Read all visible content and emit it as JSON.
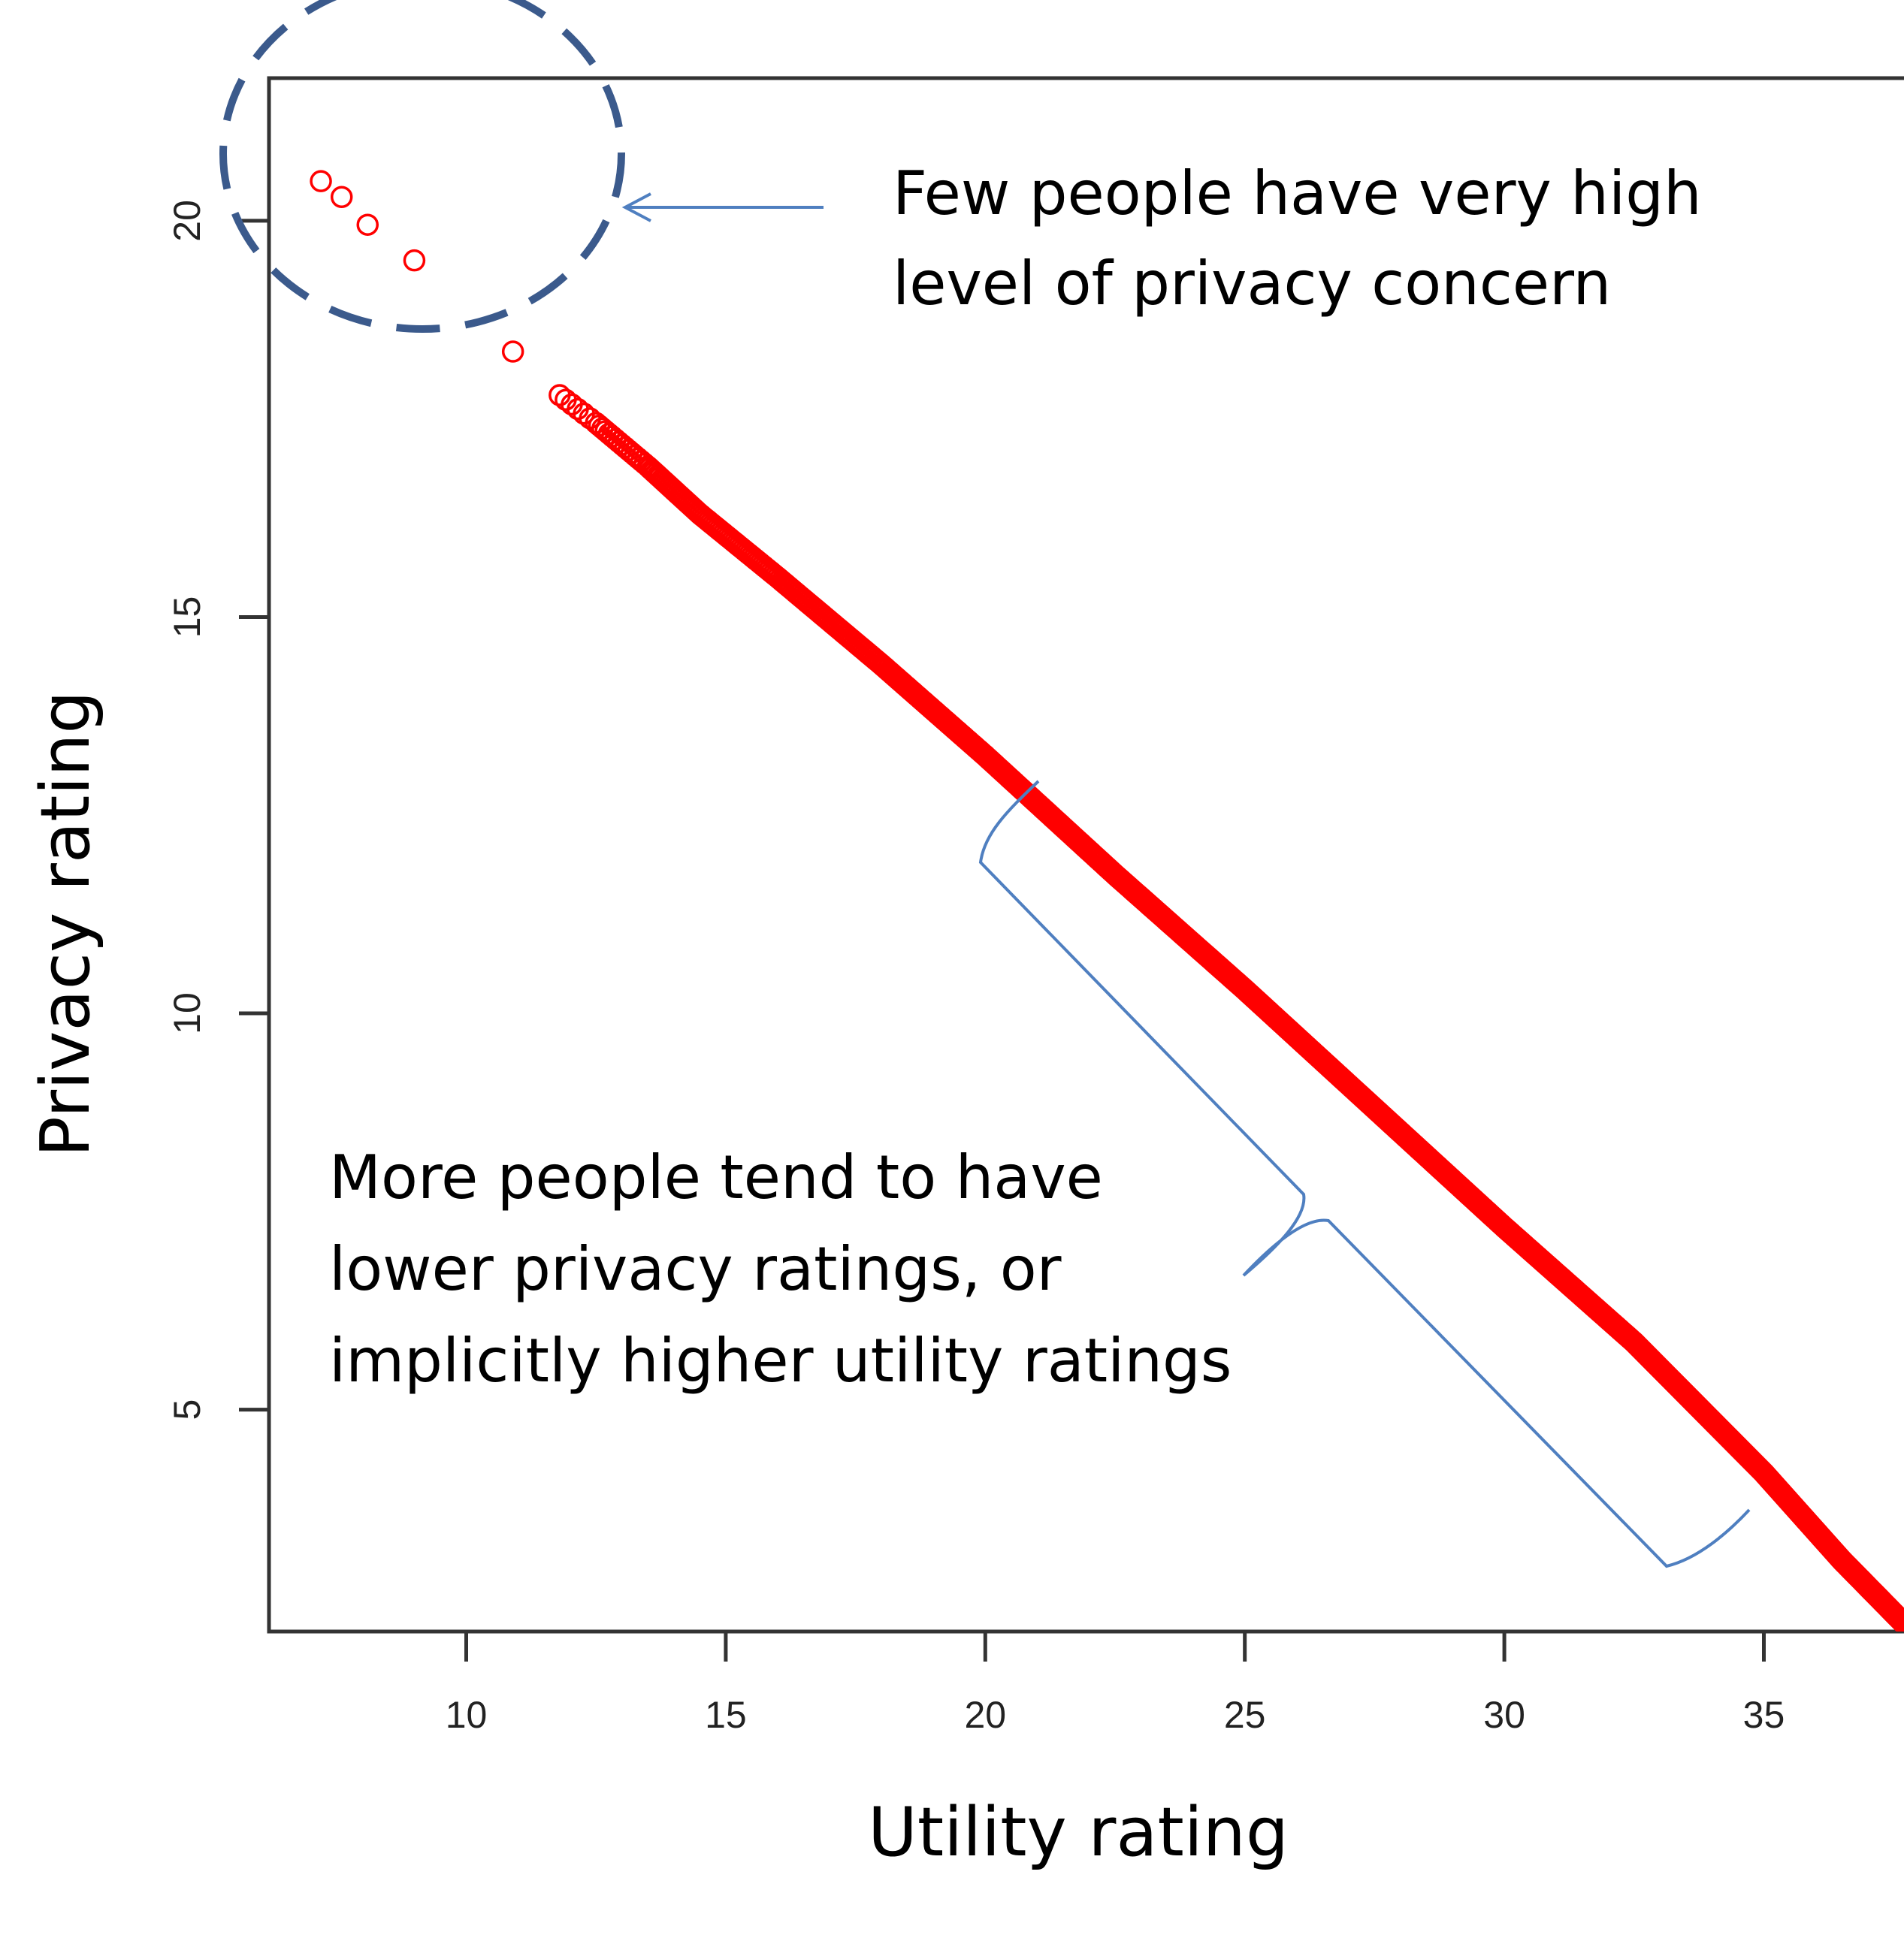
{
  "chart_data": {
    "type": "scatter",
    "xlabel": "Utility rating",
    "ylabel": "Privacy rating",
    "xlim": [
      6.2,
      37.7
    ],
    "ylim": [
      2.2,
      21.8
    ],
    "xticks": [
      10,
      15,
      20,
      25,
      30,
      35
    ],
    "yticks": [
      5,
      10,
      15,
      20
    ],
    "grid": false,
    "marker": "open-circle",
    "color": "#ff0000",
    "highlight_color": "#3b5a8c",
    "annotation_color": "#4f7fc0",
    "points": [
      {
        "x": 7.2,
        "y": 20.5
      },
      {
        "x": 7.6,
        "y": 20.3
      },
      {
        "x": 8.1,
        "y": 19.95
      },
      {
        "x": 9.0,
        "y": 19.5
      },
      {
        "x": 10.9,
        "y": 18.35
      }
    ],
    "dense_curve": [
      {
        "x": 11.8,
        "y": 17.8
      },
      {
        "x": 12.5,
        "y": 17.45
      },
      {
        "x": 13.5,
        "y": 16.9
      },
      {
        "x": 14.5,
        "y": 16.3
      },
      {
        "x": 16.0,
        "y": 15.5
      },
      {
        "x": 18.0,
        "y": 14.4
      },
      {
        "x": 20.0,
        "y": 13.25
      },
      {
        "x": 22.5,
        "y": 11.75
      },
      {
        "x": 25.0,
        "y": 10.3
      },
      {
        "x": 27.5,
        "y": 8.8
      },
      {
        "x": 30.0,
        "y": 7.3
      },
      {
        "x": 32.5,
        "y": 5.85
      },
      {
        "x": 35.0,
        "y": 4.2
      },
      {
        "x": 36.5,
        "y": 3.1
      },
      {
        "x": 37.7,
        "y": 2.3
      }
    ],
    "annotations": [
      {
        "lines": [
          "Few people have very high",
          "level of privacy concern"
        ]
      },
      {
        "lines": [
          "More people tend to have",
          "lower privacy ratings, or",
          "implicitly higher utility  ratings"
        ]
      }
    ]
  }
}
